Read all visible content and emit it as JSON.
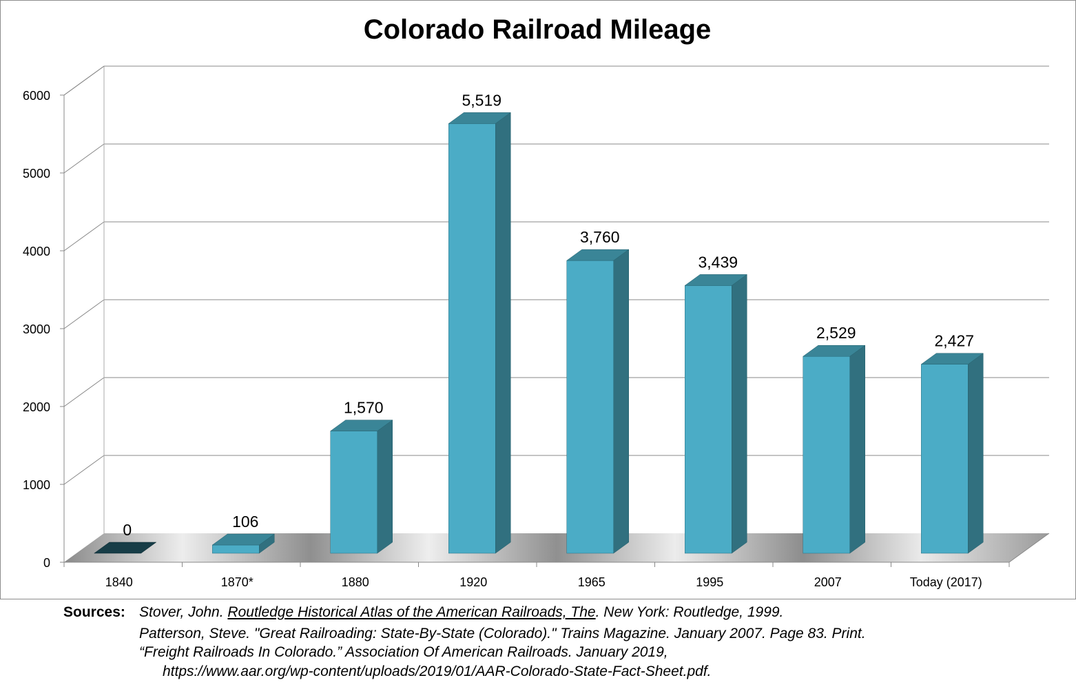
{
  "chart_data": {
    "type": "bar",
    "title": "Colorado Railroad Mileage",
    "categories": [
      "1840",
      "1870*",
      "1880",
      "1920",
      "1965",
      "1995",
      "2007",
      "Today  (2017)"
    ],
    "values": [
      0,
      106,
      1570,
      5519,
      3760,
      3439,
      2529,
      2427
    ],
    "data_labels": [
      "0",
      "106",
      "1,570",
      "5,519",
      "3,760",
      "3,439",
      "2,529",
      "2,427"
    ],
    "yticks": [
      "0",
      "1000",
      "2000",
      "3000",
      "4000",
      "5000",
      "6000"
    ],
    "ylim": [
      0,
      6000
    ],
    "xlabel": "",
    "ylabel": "",
    "grid": true,
    "style": "3d-column",
    "colors": {
      "front": "#4BACC6",
      "side": "#31707F",
      "top": "#3A8597",
      "zero_bar": "#173D47",
      "grid": "#888888"
    }
  },
  "sources": {
    "label": "Sources:",
    "line1_pre": "Stover, John. ",
    "line1_title": "Routledge Historical Atlas of the American Railroads, The",
    "line1_post": ". New York: Routledge, 1999.",
    "line2": "Patterson, Steve. \"Great Railroading: State-By-State (Colorado).\" Trains Magazine. January 2007. Page 83. Print.",
    "line3": "“Freight Railroads In Colorado.” Association Of American Railroads. January 2019,",
    "line4": "https://www.aar.org/wp-content/uploads/2019/01/AAR-Colorado-State-Fact-Sheet.pdf."
  }
}
